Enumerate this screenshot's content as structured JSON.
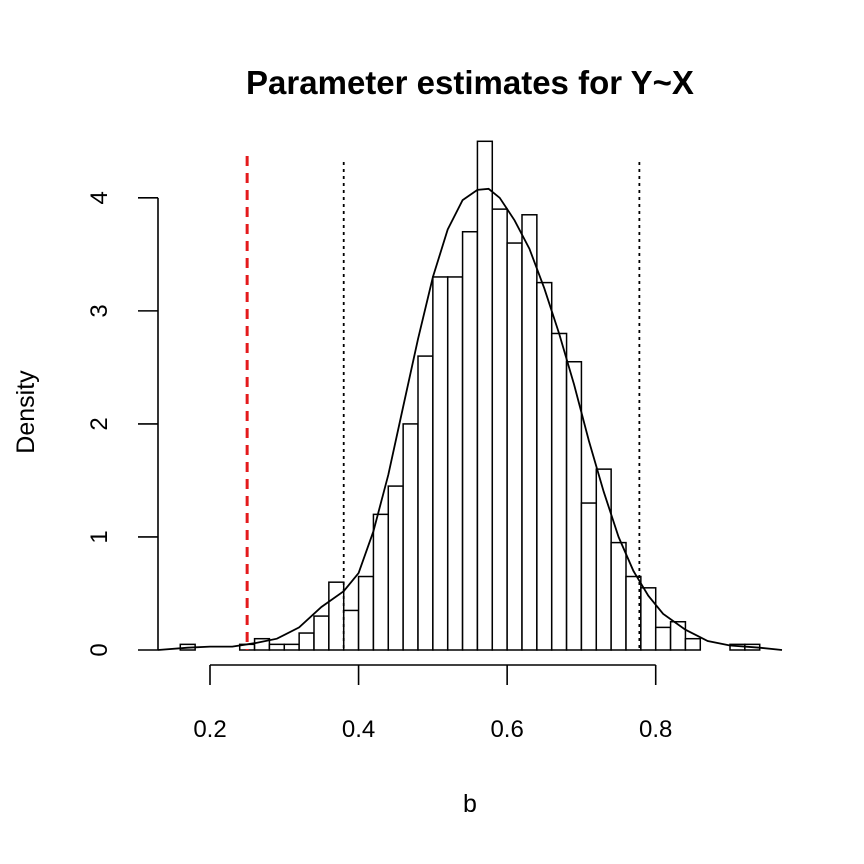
{
  "chart_data": {
    "type": "bar",
    "title": "Parameter estimates for Y~X",
    "xlabel": "b",
    "ylabel": "Density",
    "xlim": [
      0.13,
      0.97
    ],
    "ylim": [
      0,
      4.6
    ],
    "x_ticks": [
      0.2,
      0.4,
      0.6,
      0.8
    ],
    "x_tick_labels": [
      "0.2",
      "0.4",
      "0.6",
      "0.8"
    ],
    "y_ticks": [
      0,
      1,
      2,
      3,
      4
    ],
    "y_tick_labels": [
      "0",
      "1",
      "2",
      "3",
      "4"
    ],
    "x_axis_range": [
      0.2,
      0.8
    ],
    "y_axis_range": [
      0,
      4
    ],
    "grid": false,
    "histogram": {
      "bin_start": 0.16,
      "bin_width": 0.02,
      "densities": [
        0.05,
        0,
        0,
        0,
        0.05,
        0.1,
        0.05,
        0.05,
        0.15,
        0.3,
        0.6,
        0.35,
        0.65,
        1.2,
        1.45,
        2.0,
        2.6,
        3.3,
        3.3,
        3.7,
        4.5,
        3.9,
        3.6,
        3.85,
        3.25,
        2.8,
        2.55,
        1.3,
        1.6,
        0.95,
        0.65,
        0.55,
        0.2,
        0.25,
        0.1,
        0,
        0,
        0.05,
        0.05
      ]
    },
    "density_curve": {
      "x": [
        0.13,
        0.17,
        0.2,
        0.23,
        0.26,
        0.29,
        0.32,
        0.35,
        0.38,
        0.4,
        0.42,
        0.44,
        0.46,
        0.48,
        0.5,
        0.52,
        0.54,
        0.56,
        0.575,
        0.59,
        0.61,
        0.63,
        0.65,
        0.67,
        0.69,
        0.71,
        0.73,
        0.75,
        0.77,
        0.79,
        0.81,
        0.84,
        0.87,
        0.9,
        0.94,
        0.97
      ],
      "y": [
        0,
        0.02,
        0.03,
        0.03,
        0.06,
        0.1,
        0.2,
        0.38,
        0.52,
        0.68,
        1.05,
        1.55,
        2.15,
        2.75,
        3.3,
        3.72,
        3.98,
        4.07,
        4.08,
        4.0,
        3.8,
        3.55,
        3.2,
        2.8,
        2.35,
        1.85,
        1.4,
        1.0,
        0.7,
        0.48,
        0.32,
        0.18,
        0.08,
        0.04,
        0.02,
        0
      ]
    },
    "ci_lines": [
      0.38,
      0.778
    ],
    "reference_line": {
      "x": 0.25,
      "color": "#e41a1c"
    }
  }
}
